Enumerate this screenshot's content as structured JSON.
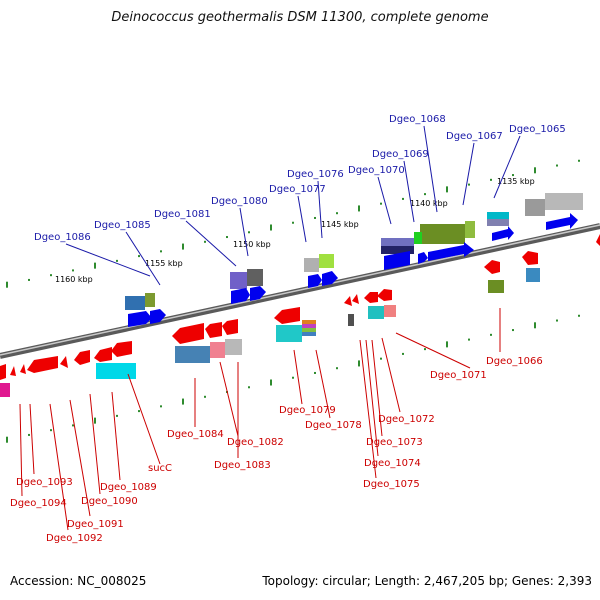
{
  "title": "Deinococcus geothermalis DSM 11300, complete genome",
  "accession": "Accession: NC_008025",
  "topology": "Topology: circular; Length: 2,467,205 bp; Genes: 2,393",
  "kbp_labels": [
    "1135 kbp",
    "1140 kbp",
    "1145 kbp",
    "1150 kbp",
    "1155 kbp",
    "1160 kbp"
  ],
  "top_genes": [
    "Dgeo_1065",
    "Dgeo_1067",
    "Dgeo_1068",
    "Dgeo_1069",
    "Dgeo_1070",
    "Dgeo_1076",
    "Dgeo_1077",
    "Dgeo_1080",
    "Dgeo_1081",
    "Dgeo_1085",
    "Dgeo_1086"
  ],
  "bottom_genes": [
    "Dgeo_1066",
    "Dgeo_1071",
    "Dgeo_1072",
    "Dgeo_1073",
    "Dgeo_1074",
    "Dgeo_1075",
    "Dgeo_1078",
    "Dgeo_1079",
    "Dgeo_1082",
    "Dgeo_1083",
    "Dgeo_1084",
    "sucC",
    "Dgeo_1089",
    "Dgeo_1090",
    "Dgeo_1091",
    "Dgeo_1092",
    "Dgeo_1093",
    "Dgeo_1094"
  ],
  "colors": {
    "forward": "#0000ee",
    "reverse": "#ee0000",
    "label_forward": "#1a1aa8",
    "label_reverse": "#cc0000",
    "backbone": "#808080"
  }
}
